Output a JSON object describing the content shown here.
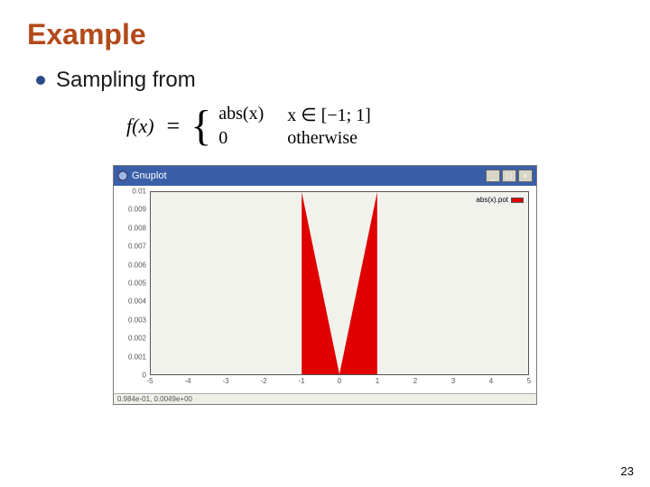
{
  "colors": {
    "title": "#b24a1a",
    "bullet": "#2a4a8a",
    "text": "#1a1a1a",
    "titlebar_bg": "#3a5fa8",
    "titlebar_fg": "#ffffff",
    "plot_bg": "#f2f2ec",
    "plot_fill": "#e00000",
    "window_border": "#7a7a7a"
  },
  "title": "Example",
  "bullet_text": "Sampling from",
  "formula": {
    "lhs": "f(x)",
    "eq": "=",
    "case1_expr": "abs(x)",
    "case1_cond": "x ∈ [−1; 1]",
    "case2_expr": "0",
    "case2_cond": "otherwise"
  },
  "window": {
    "title": "Gnuplot",
    "min_icon": "_",
    "max_icon": "□",
    "close_icon": "×",
    "status": "  0.984e-01, 0.0049e+00"
  },
  "chart": {
    "type": "area",
    "x_range": [
      -5,
      5
    ],
    "y_range": [
      0,
      0.01
    ],
    "x_ticks": [
      "-5",
      "-4",
      "-3",
      "-2",
      "-1",
      "0",
      "1",
      "2",
      "3",
      "4",
      "5"
    ],
    "y_ticks": [
      "0",
      "0.001",
      "0.002",
      "0.003",
      "0.004",
      "0.005",
      "0.006",
      "0.007",
      "0.008",
      "0.009",
      "0.01"
    ],
    "legend_label": "abs(x).pot",
    "legend_swatch_color": "#e00000",
    "series_points": [
      [
        -1,
        0.01
      ],
      [
        0,
        0
      ],
      [
        1,
        0.01
      ]
    ]
  },
  "page_number": "23"
}
